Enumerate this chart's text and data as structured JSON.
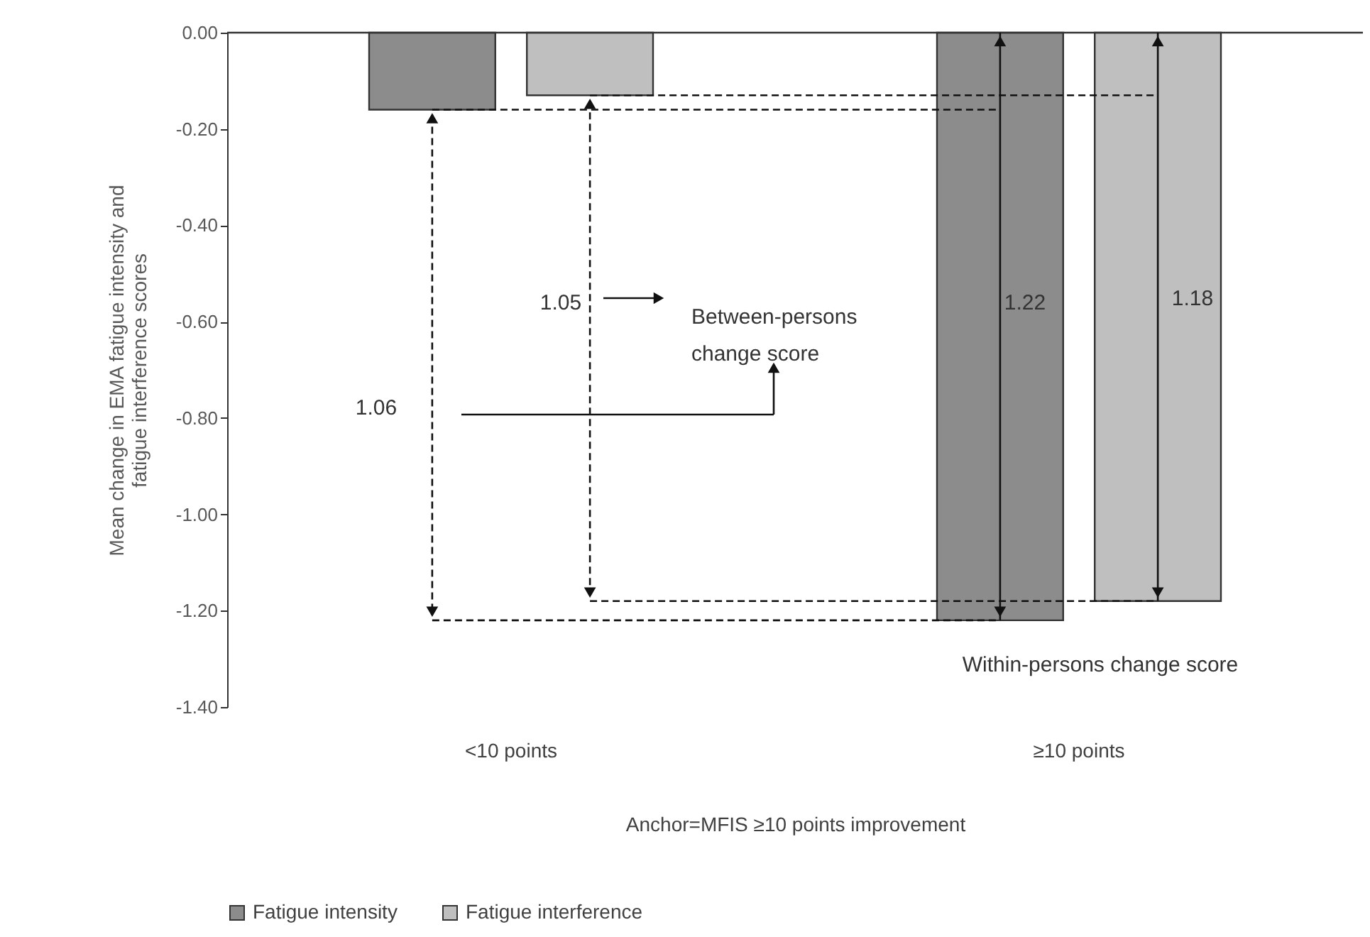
{
  "chart_data": {
    "type": "bar",
    "xlabel": "Anchor=MFIS ≥10 points improvement",
    "ylabel": "Mean change in EMA fatigue intensity and fatigue interference scores",
    "categories": [
      "<10 points",
      "≥10 points"
    ],
    "series": [
      {
        "name": "Fatigue intensity",
        "color": "#8c8c8c",
        "values": [
          -0.16,
          -1.22
        ],
        "errors": [
          null,
          [
            -1.22,
            0
          ]
        ]
      },
      {
        "name": "Fatigue interference",
        "color": "#bfbfbf",
        "values": [
          -0.13,
          -1.18
        ],
        "errors": [
          null,
          [
            -1.18,
            0
          ]
        ]
      }
    ],
    "ylim": [
      -1.4,
      0
    ],
    "yticks": [
      {
        "value": -1.4,
        "label": "-1.40"
      },
      {
        "value": -1.2,
        "label": "-1.20"
      },
      {
        "value": -1.0,
        "label": "-1.00"
      },
      {
        "value": -0.8,
        "label": "-0.80"
      },
      {
        "value": -0.6,
        "label": "-0.60"
      },
      {
        "value": -0.4,
        "label": "-0.40"
      },
      {
        "value": -0.2,
        "label": "-0.20"
      },
      {
        "value": 0,
        "label": "0.00"
      }
    ],
    "annotations": [
      "1.06",
      "1.05",
      "1.22",
      "1.18",
      "Between-persons change score",
      "Within-persons change score"
    ],
    "ref_lines": [
      {
        "axis": "y",
        "value": -0.16,
        "line_style": "dashed",
        "color": "#111111"
      },
      {
        "axis": "y",
        "value": -1.22,
        "line_style": "dashed",
        "color": "#111111"
      },
      {
        "axis": "y",
        "value": -0.13,
        "line_style": "dashed",
        "color": "#111111"
      },
      {
        "axis": "y",
        "value": -1.18,
        "line_style": "dashed",
        "color": "#111111"
      }
    ],
    "grid": false,
    "legend": "bottom"
  }
}
